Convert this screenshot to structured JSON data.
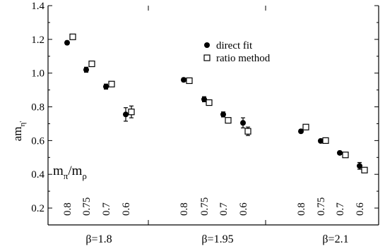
{
  "chart_data": {
    "type": "scatter",
    "ylabel": "am",
    "ylabel_sub": "η'",
    "ylim": [
      0.1,
      1.4
    ],
    "yticks": [
      "0.2",
      "0.4",
      "0.6",
      "0.8",
      "1.0",
      "1.2",
      "1.4"
    ],
    "ytick_values": [
      0.2,
      0.4,
      0.6,
      0.8,
      1.0,
      1.2,
      1.4
    ],
    "groups": [
      {
        "label": "β=1.8",
        "ratios": [
          "0.8",
          "0.75",
          "0.7",
          "0.6"
        ]
      },
      {
        "label": "β=1.95",
        "ratios": [
          "0.8",
          "0.75",
          "0.7",
          "0.6"
        ]
      },
      {
        "label": "β=2.1",
        "ratios": [
          "0.8",
          "0.75",
          "0.7",
          "0.6"
        ]
      }
    ],
    "series": [
      {
        "name": "direct fit",
        "marker": "filled-circle",
        "points": [
          [
            1.18,
            0.01
          ],
          [
            1.02,
            0.015
          ],
          [
            0.92,
            0.015
          ],
          [
            0.755,
            0.04
          ],
          [
            0.96,
            0.01
          ],
          [
            0.845,
            0.015
          ],
          [
            0.755,
            0.015
          ],
          [
            0.705,
            0.03
          ],
          [
            0.655,
            0.01
          ],
          [
            0.598,
            0.01
          ],
          [
            0.527,
            0.01
          ],
          [
            0.45,
            0.02
          ]
        ]
      },
      {
        "name": "ratio method",
        "marker": "open-square",
        "points": [
          [
            1.215,
            0.01
          ],
          [
            1.055,
            0.01
          ],
          [
            0.935,
            0.01
          ],
          [
            0.77,
            0.035
          ],
          [
            0.955,
            0.01
          ],
          [
            0.825,
            0.015
          ],
          [
            0.72,
            0.015
          ],
          [
            0.655,
            0.025
          ],
          [
            0.68,
            0.01
          ],
          [
            0.6,
            0.01
          ],
          [
            0.515,
            0.01
          ],
          [
            0.425,
            0.015
          ]
        ]
      }
    ],
    "inset_label": "m",
    "inset_label_sub1": "π",
    "inset_label_mid": "/m",
    "inset_label_sub2": "ρ",
    "legend_position": "top-center"
  }
}
